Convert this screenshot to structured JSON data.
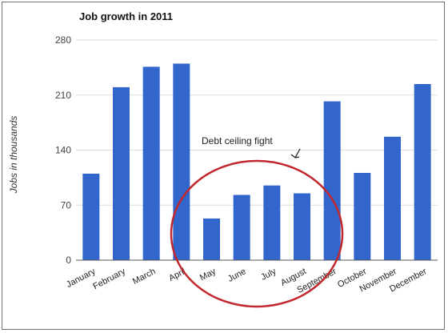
{
  "chart_data": {
    "type": "bar",
    "title": "Job growth in 2011",
    "xlabel": "",
    "ylabel": "Jobs in thousands",
    "categories": [
      "January",
      "February",
      "March",
      "April",
      "May",
      "June",
      "July",
      "August",
      "September",
      "October",
      "November",
      "December"
    ],
    "values": [
      110,
      220,
      246,
      250,
      53,
      83,
      95,
      85,
      202,
      111,
      157,
      224
    ],
    "ylim": [
      0,
      280
    ],
    "yticks": [
      0,
      70,
      140,
      210,
      280
    ],
    "grid": true,
    "legend": "none",
    "bar_color": "#3366cc",
    "annotation": {
      "text": "Debt ceiling fight",
      "highlighted_categories": [
        "May",
        "June",
        "July",
        "August"
      ],
      "circle_color": "#c0282d"
    }
  }
}
